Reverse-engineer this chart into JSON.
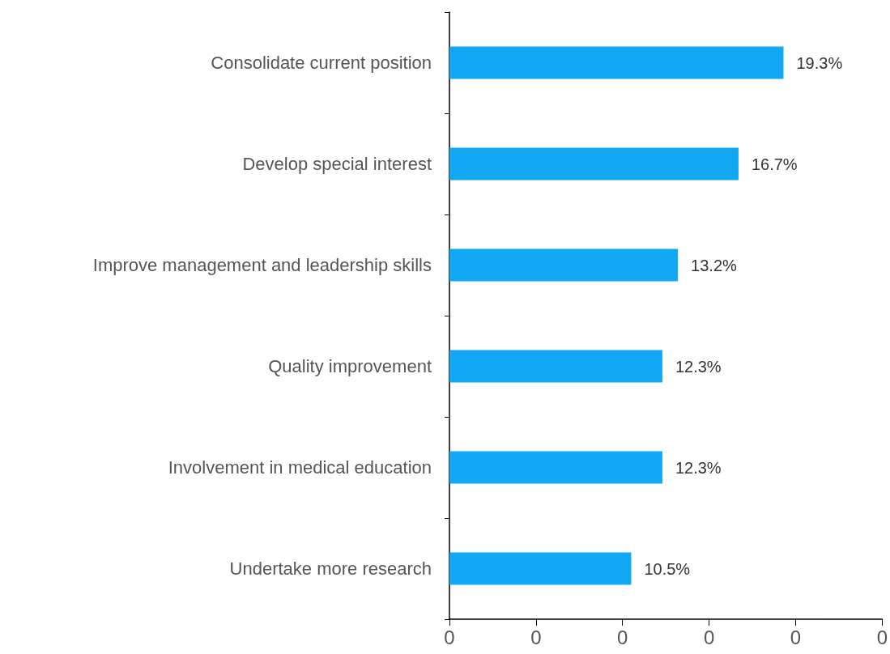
{
  "chart_data": {
    "type": "bar",
    "orientation": "horizontal",
    "categories": [
      "Consolidate current position",
      "Develop special interest",
      "Improve management and leadership skills",
      "Quality improvement",
      "Involvement in medical education",
      "Undertake more research"
    ],
    "values": [
      19.3,
      16.7,
      13.2,
      12.3,
      12.3,
      10.5
    ],
    "value_labels": [
      "19.3%",
      "16.7%",
      "13.2%",
      "12.3%",
      "12.3%",
      "10.5%"
    ],
    "color": "#12a7f2",
    "annotations": [
      "0",
      "0",
      "0",
      "0",
      "0",
      "0"
    ],
    "grid": false
  }
}
